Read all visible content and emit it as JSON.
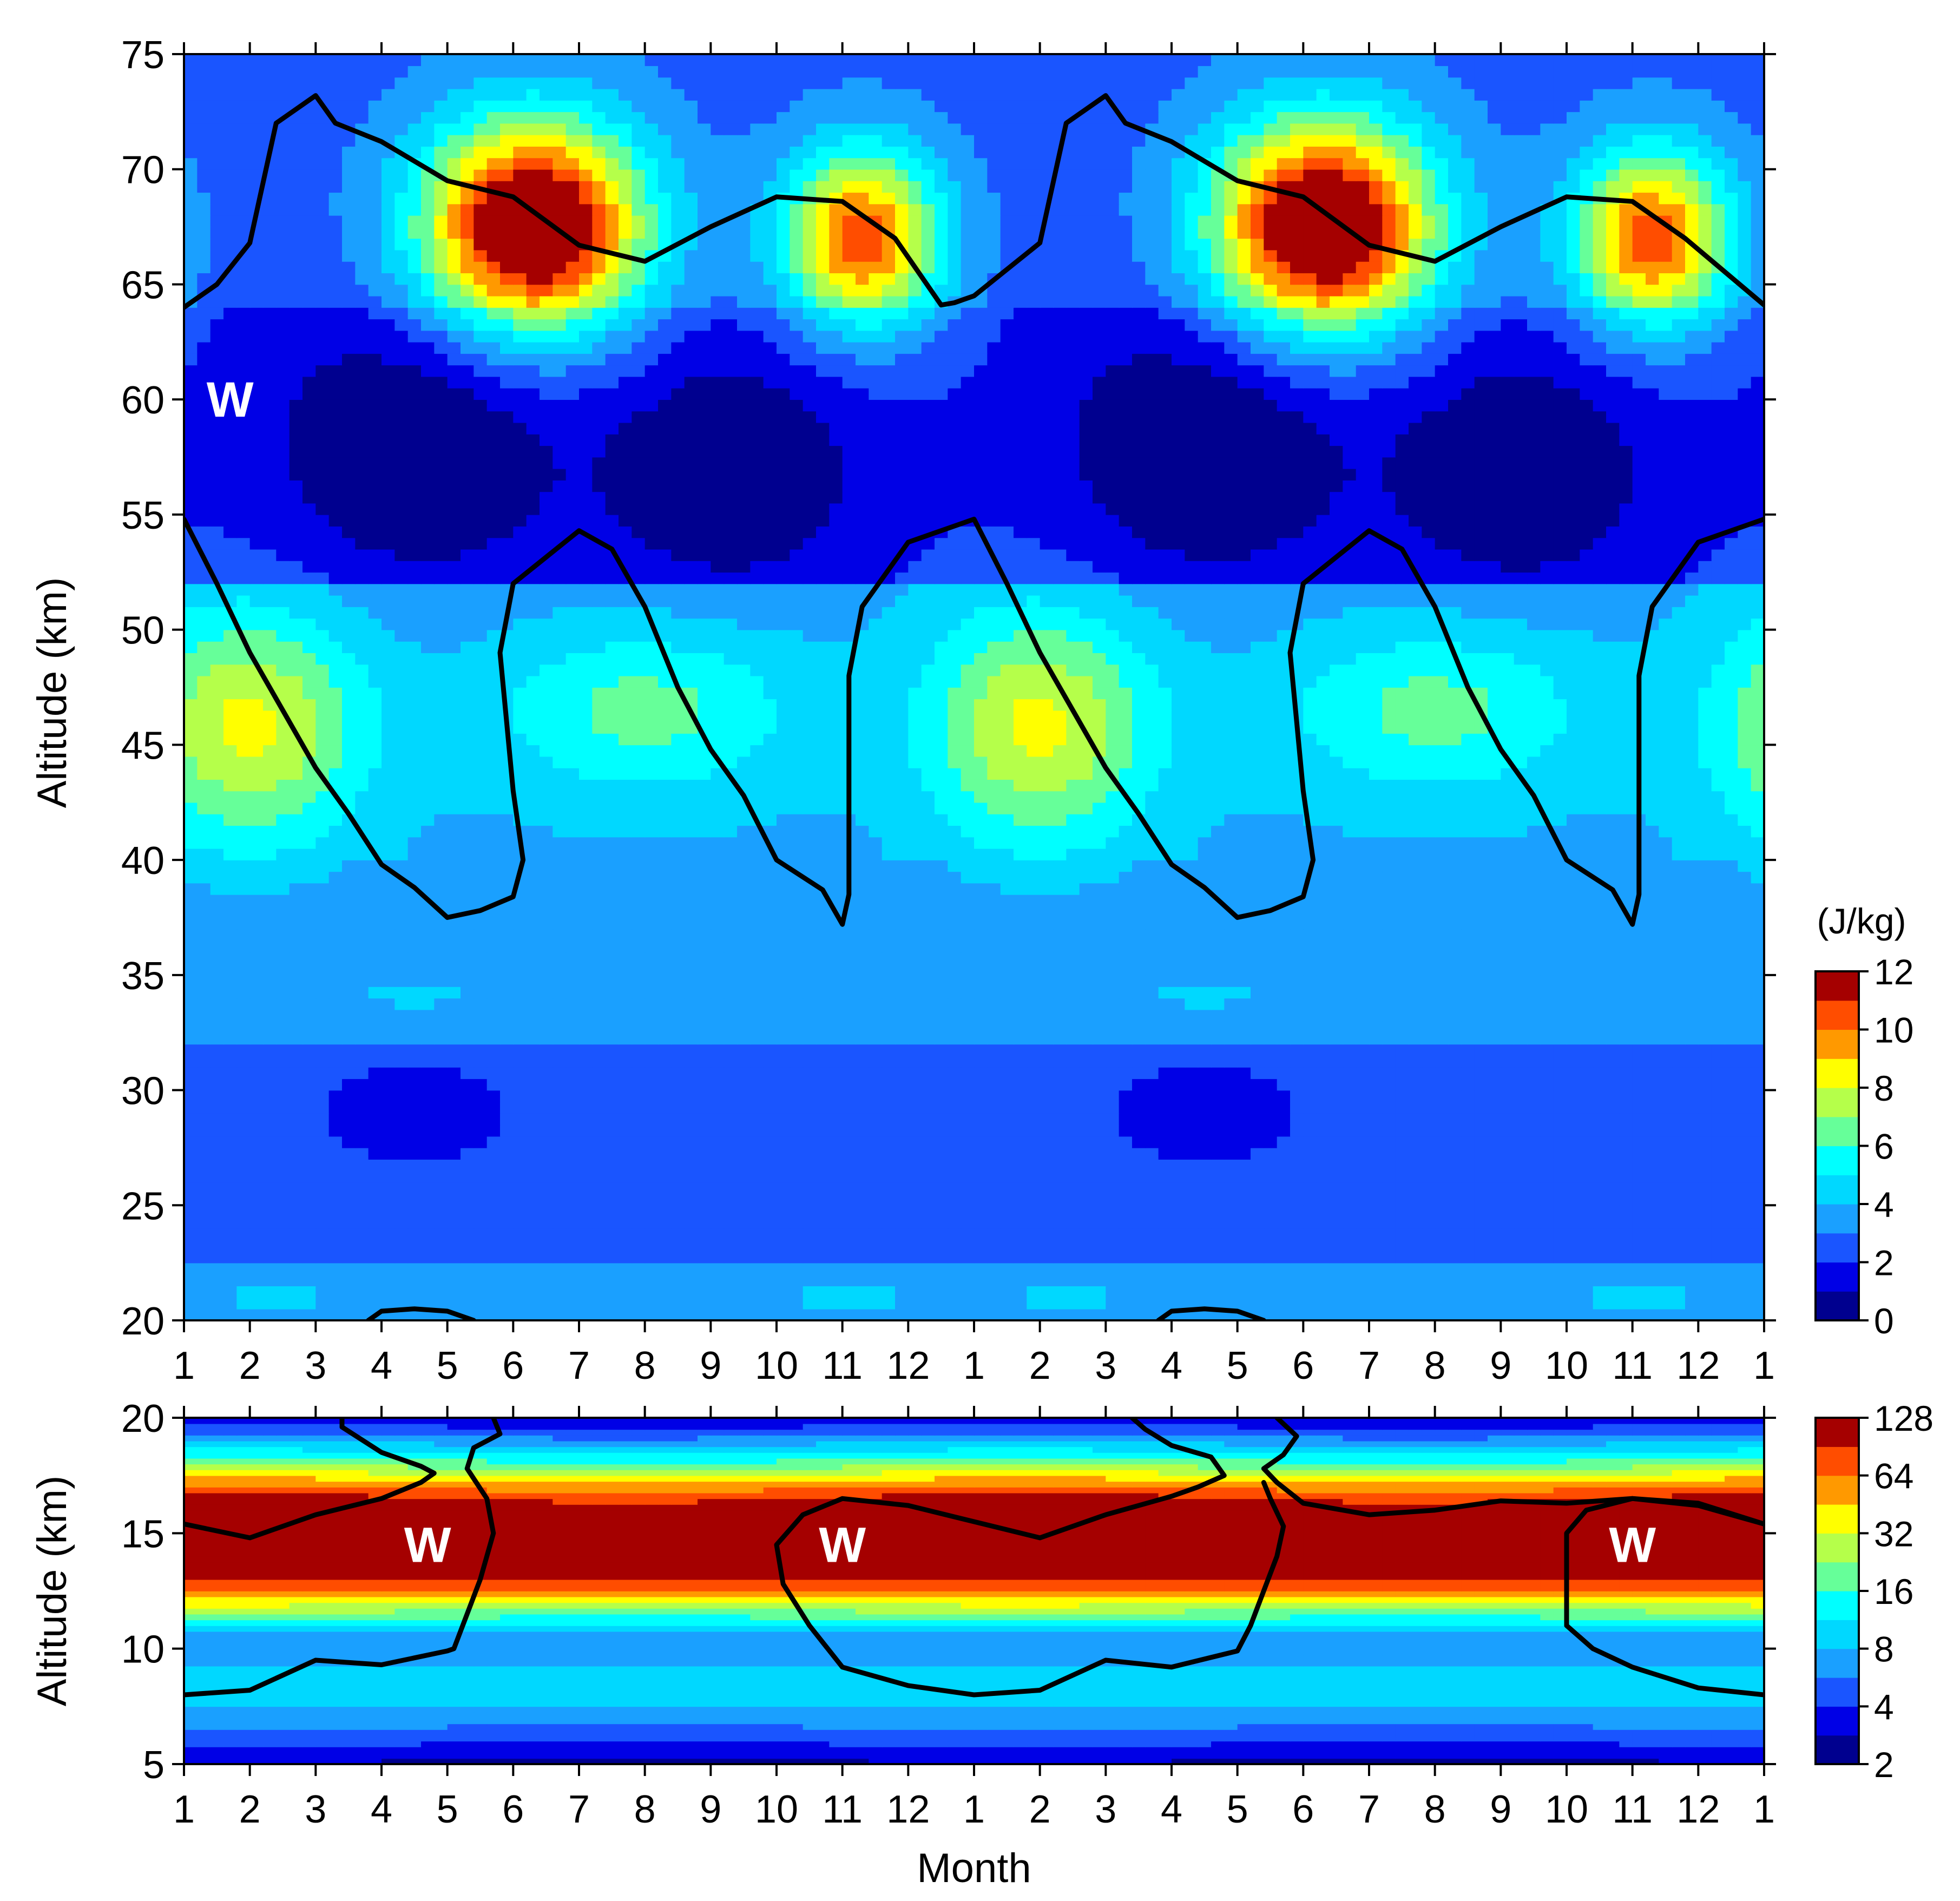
{
  "chart_data": [
    {
      "type": "heatmap",
      "panel": "upper",
      "title": "",
      "xlabel": "",
      "ylabel": "Altitude (km)",
      "x_tick_labels": [
        "1",
        "2",
        "3",
        "4",
        "5",
        "6",
        "7",
        "8",
        "9",
        "10",
        "11",
        "12",
        "1",
        "2",
        "3",
        "4",
        "5",
        "6",
        "7",
        "8",
        "9",
        "10",
        "11",
        "12",
        "1"
      ],
      "xlim": [
        1,
        25
      ],
      "ylim": [
        20,
        75
      ],
      "y_ticks": [
        20,
        25,
        30,
        35,
        40,
        45,
        50,
        55,
        60,
        65,
        70,
        75
      ],
      "colorbar": {
        "title": "(J/kg)",
        "levels": [
          0,
          1,
          2,
          3,
          4,
          5,
          6,
          7,
          8,
          9,
          10,
          11,
          12
        ],
        "tick_labels": [
          "0",
          "2",
          "4",
          "6",
          "8",
          "10",
          "12"
        ],
        "colors": [
          "#00008f",
          "#0000e6",
          "#1a55ff",
          "#1aa0ff",
          "#00d8ff",
          "#00ffff",
          "#66ff99",
          "#b5ff4a",
          "#ffff00",
          "#ff9900",
          "#ff4d00",
          "#a50000"
        ]
      },
      "colormap_values_note_free": true,
      "background_value": 2.6,
      "field_features": [
        {
          "x": 6.3,
          "y": 67.5,
          "sx": 1.2,
          "sy": 3.3,
          "amp": 11.0
        },
        {
          "x": 11.3,
          "y": 67.0,
          "sx": 0.85,
          "sy": 2.8,
          "amp": 8.0
        },
        {
          "x": 2.0,
          "y": 45.8,
          "sx": 1.2,
          "sy": 3.5,
          "amp": 4.5
        },
        {
          "x": 8.0,
          "y": 46.5,
          "sx": 1.6,
          "sy": 2.5,
          "amp": 2.6
        },
        {
          "x": 4.5,
          "y": 58.0,
          "sx": 1.5,
          "sy": 4.0,
          "amp": -2.3
        },
        {
          "x": 9.3,
          "y": 57.0,
          "sx": 1.3,
          "sy": 3.5,
          "amp": -2.3
        },
        {
          "x": 4.5,
          "y": 29.0,
          "sx": 0.8,
          "sy": 1.2,
          "amp": -0.9
        },
        {
          "x": 4.5,
          "y": 34.2,
          "sx": 1.0,
          "sy": 0.8,
          "amp": 0.6
        },
        {
          "x": 2.5,
          "y": 21.0,
          "sx": 1.2,
          "sy": 1.2,
          "amp": 0.8
        },
        {
          "x": 11.0,
          "y": 21.0,
          "sx": 1.2,
          "sy": 1.2,
          "amp": 0.8
        }
      ],
      "zero_wind_line": {
        "segments": [
          [
            [
              1,
              64
            ],
            [
              1.5,
              65
            ],
            [
              2,
              66.8
            ],
            [
              2.4,
              72
            ],
            [
              3,
              73.2
            ],
            [
              3.3,
              72
            ],
            [
              4,
              71.2
            ],
            [
              5,
              69.5
            ],
            [
              6,
              68.8
            ],
            [
              7,
              66.7
            ],
            [
              8,
              66
            ],
            [
              9,
              67.5
            ],
            [
              10,
              68.8
            ],
            [
              11,
              68.6
            ],
            [
              11.8,
              67
            ],
            [
              12.5,
              64.1
            ],
            [
              12.7,
              64.2
            ],
            [
              13,
              64.5
            ],
            [
              14,
              66.8
            ],
            [
              14.4,
              72
            ],
            [
              15,
              73.2
            ],
            [
              15.3,
              72
            ],
            [
              16,
              71.2
            ],
            [
              17,
              69.5
            ],
            [
              18,
              68.8
            ],
            [
              19,
              66.7
            ],
            [
              20,
              66
            ],
            [
              21,
              67.5
            ],
            [
              22,
              68.8
            ],
            [
              23,
              68.6
            ],
            [
              23.8,
              67
            ],
            [
              25,
              64.1
            ]
          ],
          [
            [
              1,
              54.8
            ],
            [
              1.5,
              52
            ],
            [
              2,
              49
            ],
            [
              2.5,
              46.5
            ],
            [
              3,
              44
            ],
            [
              3.5,
              42
            ],
            [
              4,
              39.8
            ],
            [
              4.5,
              38.8
            ],
            [
              5,
              37.5
            ],
            [
              5.5,
              37.8
            ],
            [
              6,
              38.4
            ],
            [
              6.15,
              40
            ],
            [
              6,
              43
            ],
            [
              5.9,
              46
            ],
            [
              5.8,
              49
            ],
            [
              6,
              52
            ],
            [
              7,
              54.3
            ],
            [
              7.5,
              53.5
            ],
            [
              8,
              51
            ],
            [
              8.5,
              47.5
            ],
            [
              9,
              44.8
            ],
            [
              9.5,
              42.8
            ],
            [
              10,
              40
            ],
            [
              10.7,
              38.7
            ],
            [
              11,
              37.2
            ],
            [
              11.1,
              38.5
            ],
            [
              11.1,
              41
            ],
            [
              11.1,
              45
            ],
            [
              11.1,
              48
            ],
            [
              11.3,
              51
            ],
            [
              12,
              53.8
            ],
            [
              13,
              54.8
            ],
            [
              13.5,
              52
            ],
            [
              14,
              49
            ],
            [
              14.5,
              46.5
            ],
            [
              15,
              44
            ],
            [
              15.5,
              42
            ],
            [
              16,
              39.8
            ],
            [
              16.5,
              38.8
            ],
            [
              17,
              37.5
            ],
            [
              17.5,
              37.8
            ],
            [
              18,
              38.4
            ],
            [
              18.15,
              40
            ],
            [
              18,
              43
            ],
            [
              17.9,
              46
            ],
            [
              17.8,
              49
            ],
            [
              18,
              52
            ],
            [
              19,
              54.3
            ],
            [
              19.5,
              53.5
            ],
            [
              20,
              51
            ],
            [
              20.5,
              47.5
            ],
            [
              21,
              44.8
            ],
            [
              21.5,
              42.8
            ],
            [
              22,
              40
            ],
            [
              22.7,
              38.7
            ],
            [
              23,
              37.2
            ],
            [
              23.1,
              38.5
            ],
            [
              23.1,
              41
            ],
            [
              23.1,
              45
            ],
            [
              23.1,
              48
            ],
            [
              23.3,
              51
            ],
            [
              24,
              53.8
            ],
            [
              25,
              54.8
            ]
          ],
          [
            [
              3.8,
              20
            ],
            [
              4,
              20.4
            ],
            [
              4.5,
              20.5
            ],
            [
              5,
              20.4
            ],
            [
              5.4,
              20
            ]
          ],
          [
            [
              15.8,
              20
            ],
            [
              16,
              20.4
            ],
            [
              16.5,
              20.5
            ],
            [
              17,
              20.4
            ],
            [
              17.4,
              20
            ]
          ]
        ]
      },
      "annotations": [
        {
          "text": "W",
          "x": 1.7,
          "y": 60
        }
      ]
    },
    {
      "type": "heatmap",
      "panel": "lower",
      "title": "",
      "xlabel": "Month",
      "ylabel": "Altitude (km)",
      "x_tick_labels": [
        "1",
        "2",
        "3",
        "4",
        "5",
        "6",
        "7",
        "8",
        "9",
        "10",
        "11",
        "12",
        "1",
        "2",
        "3",
        "4",
        "5",
        "6",
        "7",
        "8",
        "9",
        "10",
        "11",
        "12",
        "1"
      ],
      "xlim": [
        1,
        25
      ],
      "ylim": [
        5,
        20
      ],
      "y_ticks": [
        5,
        10,
        15,
        20
      ],
      "colorbar": {
        "title": "",
        "levels": [
          2,
          2.8,
          4,
          5.7,
          8,
          11.3,
          16,
          22.6,
          32,
          45,
          64,
          90,
          128
        ],
        "tick_labels": [
          "2",
          "4",
          "8",
          "16",
          "32",
          "64",
          "128"
        ],
        "colors": [
          "#00008f",
          "#0000e6",
          "#1a55ff",
          "#1aa0ff",
          "#00d8ff",
          "#00ffff",
          "#66ff99",
          "#b5ff4a",
          "#ffff00",
          "#ff9900",
          "#ff4d00",
          "#a50000"
        ]
      },
      "profile_levels": [
        {
          "z": 5.0,
          "level": 0.8
        },
        {
          "z": 5.6,
          "level": 1.6
        },
        {
          "z": 6.3,
          "level": 2.6
        },
        {
          "z": 7.0,
          "level": 3.5
        },
        {
          "z": 8.0,
          "level": 4.5
        },
        {
          "z": 9.0,
          "level": 4.4
        },
        {
          "z": 10.0,
          "level": 3.0
        },
        {
          "z": 10.8,
          "level": 4.0
        },
        {
          "z": 11.5,
          "level": 6.5
        },
        {
          "z": 12.3,
          "level": 9.5
        },
        {
          "z": 13.2,
          "level": 11.5
        },
        {
          "z": 15.5,
          "level": 12.0
        },
        {
          "z": 16.5,
          "level": 11.2
        },
        {
          "z": 17.3,
          "level": 9.0
        },
        {
          "z": 18.0,
          "level": 6.5
        },
        {
          "z": 18.7,
          "level": 4.5
        },
        {
          "z": 19.3,
          "level": 2.8
        },
        {
          "z": 20.0,
          "level": 1.2
        }
      ],
      "zero_wind_line": {
        "segments": [
          [
            [
              1,
              15.4
            ],
            [
              2,
              14.8
            ],
            [
              3,
              15.8
            ],
            [
              4,
              16.5
            ],
            [
              4.6,
              17.2
            ],
            [
              4.8,
              17.6
            ],
            [
              4.6,
              17.9
            ],
            [
              4,
              18.5
            ],
            [
              3.4,
              19.6
            ],
            [
              3.4,
              20
            ]
          ],
          [
            [
              5.7,
              20
            ],
            [
              5.8,
              19.3
            ],
            [
              5.4,
              18.7
            ],
            [
              5.3,
              17.8
            ],
            [
              5.6,
              16.5
            ],
            [
              5.7,
              15
            ],
            [
              5.5,
              13
            ],
            [
              5.3,
              11.5
            ],
            [
              5.1,
              10
            ],
            [
              5,
              9.9
            ],
            [
              4,
              9.3
            ],
            [
              3,
              9.5
            ],
            [
              2,
              8.2
            ],
            [
              1,
              8
            ]
          ],
          [
            [
              25,
              15.4
            ],
            [
              24,
              16.2
            ],
            [
              23,
              16.5
            ],
            [
              22,
              16.3
            ],
            [
              21,
              16.4
            ],
            [
              20,
              16
            ],
            [
              19,
              15.8
            ],
            [
              18,
              16.3
            ],
            [
              17.6,
              17.2
            ],
            [
              17.4,
              17.8
            ],
            [
              17.7,
              18.4
            ],
            [
              17.9,
              19.2
            ],
            [
              17.6,
              20
            ]
          ],
          [
            [
              15.4,
              20
            ],
            [
              15.6,
              19.5
            ],
            [
              16,
              18.8
            ],
            [
              16.6,
              18.3
            ],
            [
              16.8,
              17.5
            ],
            [
              16.4,
              17
            ],
            [
              16,
              16.6
            ],
            [
              15,
              15.8
            ],
            [
              14,
              14.8
            ],
            [
              13,
              15.5
            ],
            [
              12,
              16.2
            ],
            [
              11,
              16.5
            ],
            [
              10.4,
              15.8
            ],
            [
              10,
              14.5
            ],
            [
              10.1,
              12.8
            ],
            [
              10.5,
              11
            ],
            [
              11,
              9.2
            ],
            [
              12,
              8.4
            ],
            [
              13,
              8
            ],
            [
              14,
              8.2
            ],
            [
              15,
              9.5
            ],
            [
              16,
              9.2
            ],
            [
              17,
              9.9
            ],
            [
              17.2,
              11
            ],
            [
              17.4,
              12.5
            ],
            [
              17.6,
              14
            ],
            [
              17.7,
              15.3
            ],
            [
              17.5,
              16.5
            ],
            [
              17.4,
              17.2
            ]
          ],
          [
            [
              25,
              8
            ],
            [
              24,
              8.3
            ],
            [
              23,
              9.2
            ],
            [
              22.4,
              10
            ],
            [
              22,
              11
            ],
            [
              22,
              12
            ],
            [
              22,
              13.5
            ],
            [
              22,
              15
            ],
            [
              22.3,
              16
            ],
            [
              23,
              16.5
            ],
            [
              24,
              16.3
            ],
            [
              25,
              15.4
            ]
          ]
        ]
      },
      "annotations": [
        {
          "text": "W",
          "x": 4.7,
          "y": 14.5
        },
        {
          "text": "W",
          "x": 11.0,
          "y": 14.5
        },
        {
          "text": "W",
          "x": 23.0,
          "y": 14.5
        }
      ]
    }
  ]
}
